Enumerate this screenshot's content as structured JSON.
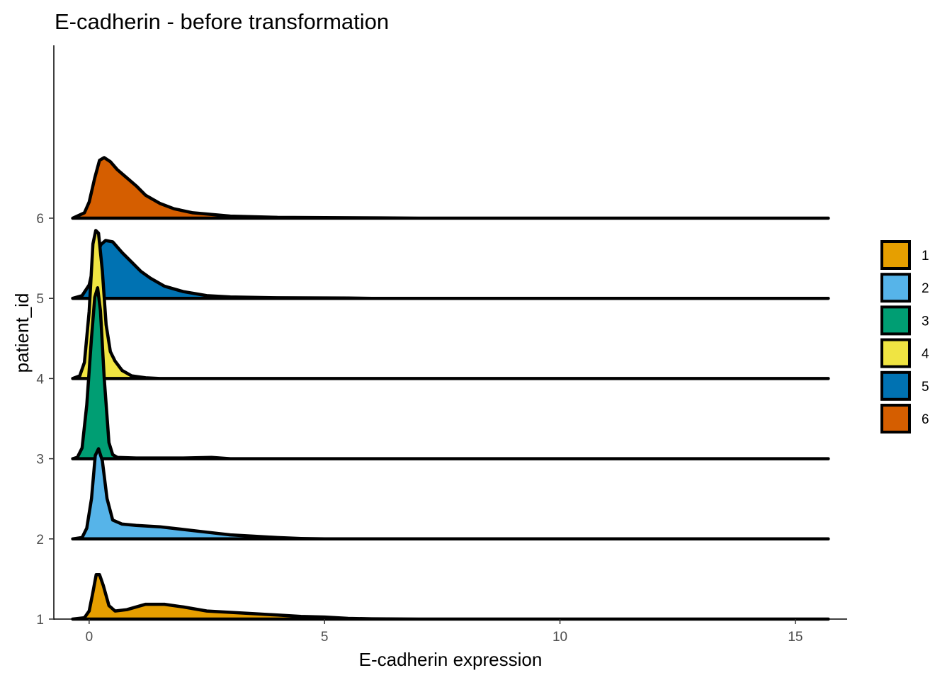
{
  "chart_data": {
    "type": "ridgeline",
    "title": "E-cadherin - before transformation",
    "xlabel": "E-cadherin expression",
    "ylabel": "patient_id",
    "xlim": [
      -0.75,
      16.1
    ],
    "x_ticks": [
      0,
      5,
      10,
      15
    ],
    "y_ticks": [
      "1",
      "2",
      "3",
      "4",
      "5",
      "6"
    ],
    "x_range": [
      -0.35,
      15.7
    ],
    "legend": {
      "position": "right",
      "entries": [
        "1",
        "2",
        "3",
        "4",
        "5",
        "6"
      ]
    },
    "grid": false,
    "series": [
      {
        "name": "1",
        "color": "#E69F00",
        "points": [
          [
            -0.35,
            0
          ],
          [
            -0.1,
            0.01
          ],
          [
            0,
            0.06
          ],
          [
            0.08,
            0.2
          ],
          [
            0.15,
            0.33
          ],
          [
            0.22,
            0.33
          ],
          [
            0.3,
            0.25
          ],
          [
            0.42,
            0.1
          ],
          [
            0.55,
            0.06
          ],
          [
            0.8,
            0.07
          ],
          [
            1.2,
            0.11
          ],
          [
            1.6,
            0.11
          ],
          [
            2.0,
            0.09
          ],
          [
            2.5,
            0.06
          ],
          [
            3.0,
            0.05
          ],
          [
            3.5,
            0.04
          ],
          [
            4.0,
            0.03
          ],
          [
            4.5,
            0.02
          ],
          [
            5.0,
            0.015
          ],
          [
            5.5,
            0.005
          ],
          [
            6.0,
            0.002
          ],
          [
            7.0,
            0
          ],
          [
            15.7,
            0
          ]
        ]
      },
      {
        "name": "2",
        "color": "#56B4E9",
        "points": [
          [
            -0.35,
            0
          ],
          [
            -0.15,
            0.01
          ],
          [
            -0.05,
            0.08
          ],
          [
            0.05,
            0.3
          ],
          [
            0.13,
            0.62
          ],
          [
            0.2,
            0.67
          ],
          [
            0.28,
            0.58
          ],
          [
            0.38,
            0.3
          ],
          [
            0.5,
            0.14
          ],
          [
            0.7,
            0.11
          ],
          [
            1.0,
            0.1
          ],
          [
            1.5,
            0.09
          ],
          [
            2.0,
            0.07
          ],
          [
            2.5,
            0.05
          ],
          [
            3.0,
            0.03
          ],
          [
            3.5,
            0.02
          ],
          [
            4.0,
            0.01
          ],
          [
            4.5,
            0.003
          ],
          [
            5.0,
            0
          ],
          [
            15.7,
            0
          ]
        ]
      },
      {
        "name": "3",
        "color": "#009E73",
        "points": [
          [
            -0.35,
            0
          ],
          [
            -0.25,
            0.01
          ],
          [
            -0.15,
            0.08
          ],
          [
            -0.05,
            0.4
          ],
          [
            0.05,
            0.9
          ],
          [
            0.12,
            1.2
          ],
          [
            0.18,
            1.27
          ],
          [
            0.24,
            1.1
          ],
          [
            0.32,
            0.6
          ],
          [
            0.42,
            0.12
          ],
          [
            0.5,
            0.03
          ],
          [
            0.6,
            0.01
          ],
          [
            1.0,
            0.005
          ],
          [
            2.0,
            0.005
          ],
          [
            2.6,
            0.01
          ],
          [
            3.0,
            0
          ],
          [
            15.7,
            0
          ]
        ]
      },
      {
        "name": "4",
        "color": "#F0E442",
        "points": [
          [
            -0.35,
            0
          ],
          [
            -0.2,
            0.02
          ],
          [
            -0.1,
            0.12
          ],
          [
            0,
            0.5
          ],
          [
            0.08,
            1.0
          ],
          [
            0.14,
            1.1
          ],
          [
            0.2,
            1.08
          ],
          [
            0.28,
            0.8
          ],
          [
            0.36,
            0.4
          ],
          [
            0.45,
            0.2
          ],
          [
            0.55,
            0.13
          ],
          [
            0.7,
            0.06
          ],
          [
            0.9,
            0.02
          ],
          [
            1.2,
            0.005
          ],
          [
            1.5,
            0
          ],
          [
            15.7,
            0
          ]
        ]
      },
      {
        "name": "5",
        "color": "#0072B2",
        "points": [
          [
            -0.35,
            0
          ],
          [
            -0.15,
            0.02
          ],
          [
            0,
            0.1
          ],
          [
            0.12,
            0.28
          ],
          [
            0.25,
            0.4
          ],
          [
            0.35,
            0.43
          ],
          [
            0.5,
            0.42
          ],
          [
            0.7,
            0.34
          ],
          [
            0.9,
            0.27
          ],
          [
            1.1,
            0.2
          ],
          [
            1.3,
            0.15
          ],
          [
            1.6,
            0.09
          ],
          [
            2.0,
            0.05
          ],
          [
            2.5,
            0.02
          ],
          [
            3.0,
            0.01
          ],
          [
            4.0,
            0.004
          ],
          [
            5.5,
            0.002
          ],
          [
            6.0,
            0
          ],
          [
            15.7,
            0
          ]
        ]
      },
      {
        "name": "6",
        "color": "#D55E00",
        "points": [
          [
            -0.35,
            0
          ],
          [
            -0.1,
            0.04
          ],
          [
            0,
            0.12
          ],
          [
            0.12,
            0.3
          ],
          [
            0.22,
            0.43
          ],
          [
            0.32,
            0.45
          ],
          [
            0.45,
            0.42
          ],
          [
            0.6,
            0.36
          ],
          [
            0.8,
            0.3
          ],
          [
            1.0,
            0.24
          ],
          [
            1.2,
            0.17
          ],
          [
            1.5,
            0.11
          ],
          [
            1.8,
            0.07
          ],
          [
            2.2,
            0.04
          ],
          [
            3.0,
            0.015
          ],
          [
            4.0,
            0.006
          ],
          [
            5.0,
            0.004
          ],
          [
            6.2,
            0.002
          ],
          [
            7.0,
            0
          ],
          [
            15.7,
            0
          ]
        ]
      }
    ]
  }
}
